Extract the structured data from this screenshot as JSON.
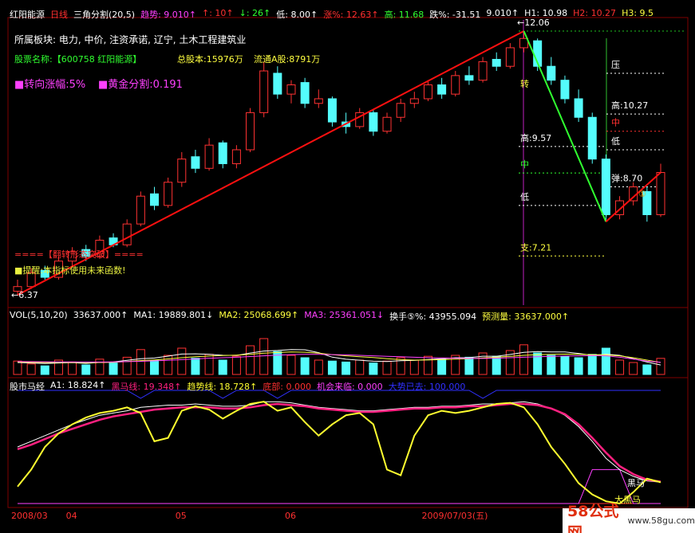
{
  "header": [
    {
      "text": "红阳能源",
      "color": "#ffffff"
    },
    {
      "text": "日线",
      "color": "#ff3030"
    },
    {
      "text": "三角分割(20,5)",
      "color": "#ffffff"
    },
    {
      "text": "趋势: 9.010↑",
      "color": "#ff40ff"
    },
    {
      "text": "↑: 10↑",
      "color": "#ff3030"
    },
    {
      "text": "↓: 26↑",
      "color": "#30ff30"
    },
    {
      "text": "低: 8.00↑",
      "color": "#ffffff"
    },
    {
      "text": "涨%: 12.63↑",
      "color": "#ff3030"
    },
    {
      "text": "高: 11.68",
      "color": "#30ff30"
    },
    {
      "text": "跌%: -31.51",
      "color": "#ffffff"
    },
    {
      "text": "9.010↑",
      "color": "#ffffff"
    },
    {
      "text": "H1: 10.98",
      "color": "#ffffff"
    },
    {
      "text": "H2: 10.27",
      "color": "#ff3030"
    },
    {
      "text": "H3: 9.5",
      "color": "#ffff40"
    }
  ],
  "info": {
    "sector": "所属板块: 电力, 中价, 注资承诺, 辽宁, 土木工程建筑业",
    "name": "股票名称:【600758 红阳能源】",
    "total_shares": "总股本:15976万",
    "float_shares": "流通A股:8791万",
    "turn_rise": "■转向涨幅:5%",
    "golden": "■黄金分割:0.191",
    "signal": "====【翻转形态突破】====",
    "warning": "■提醒:本指标使用未来函数!"
  },
  "chart_data": [
    {
      "type": "candlestick",
      "up_color": "#ff3232",
      "down_color": "#54fcfc",
      "ylim": [
        6.15,
        12.3
      ],
      "trend_color": "#ff1010",
      "fall_color": "#30ff30",
      "ohlc": [
        [
          6.45,
          6.7,
          6.37,
          6.55
        ],
        [
          6.55,
          6.95,
          6.5,
          6.85
        ],
        [
          6.9,
          7.0,
          6.7,
          6.75
        ],
        [
          6.75,
          7.2,
          6.7,
          7.1
        ],
        [
          7.1,
          7.4,
          7.0,
          7.3
        ],
        [
          7.35,
          7.45,
          7.1,
          7.2
        ],
        [
          7.2,
          7.65,
          7.15,
          7.55
        ],
        [
          7.6,
          7.7,
          7.4,
          7.45
        ],
        [
          7.45,
          8.0,
          7.4,
          7.9
        ],
        [
          7.9,
          8.6,
          7.85,
          8.5
        ],
        [
          8.55,
          8.7,
          8.2,
          8.3
        ],
        [
          8.3,
          8.9,
          8.25,
          8.8
        ],
        [
          8.8,
          9.45,
          8.7,
          9.3
        ],
        [
          9.35,
          9.5,
          9.0,
          9.1
        ],
        [
          9.1,
          9.75,
          9.05,
          9.6
        ],
        [
          9.65,
          9.7,
          9.1,
          9.2
        ],
        [
          9.2,
          9.6,
          9.1,
          9.5
        ],
        [
          9.5,
          10.4,
          9.45,
          10.3
        ],
        [
          10.3,
          11.4,
          10.2,
          11.2
        ],
        [
          11.15,
          11.3,
          10.6,
          10.7
        ],
        [
          10.7,
          11.0,
          10.5,
          10.9
        ],
        [
          10.95,
          11.05,
          10.4,
          10.5
        ],
        [
          10.5,
          10.8,
          10.4,
          10.6
        ],
        [
          10.6,
          10.65,
          10.0,
          10.1
        ],
        [
          10.1,
          10.3,
          9.85,
          10.0
        ],
        [
          10.0,
          10.4,
          9.95,
          10.3
        ],
        [
          10.3,
          10.35,
          9.8,
          9.9
        ],
        [
          9.9,
          10.3,
          9.85,
          10.2
        ],
        [
          10.2,
          10.6,
          10.1,
          10.5
        ],
        [
          10.5,
          10.75,
          10.4,
          10.6
        ],
        [
          10.6,
          11.0,
          10.55,
          10.9
        ],
        [
          10.9,
          11.05,
          10.6,
          10.7
        ],
        [
          10.7,
          11.2,
          10.65,
          11.1
        ],
        [
          11.1,
          11.3,
          10.9,
          11.0
        ],
        [
          11.0,
          11.5,
          10.95,
          11.4
        ],
        [
          11.45,
          11.6,
          11.2,
          11.3
        ],
        [
          11.3,
          11.8,
          11.25,
          11.7
        ],
        [
          11.7,
          12.06,
          11.6,
          11.9
        ],
        [
          11.85,
          11.9,
          11.2,
          11.3
        ],
        [
          11.3,
          11.5,
          10.9,
          11.0
        ],
        [
          11.0,
          11.1,
          10.5,
          10.6
        ],
        [
          10.6,
          10.8,
          10.1,
          10.2
        ],
        [
          10.2,
          10.3,
          9.2,
          9.3
        ],
        [
          9.3,
          9.4,
          7.95,
          8.1
        ],
        [
          8.1,
          8.5,
          8.0,
          8.4
        ],
        [
          8.4,
          8.8,
          8.3,
          8.7
        ],
        [
          8.6,
          8.7,
          7.95,
          8.1
        ],
        [
          8.1,
          9.2,
          8.05,
          9.01
        ]
      ],
      "dates": [
        "2008/03",
        null,
        null,
        null,
        "04",
        null,
        null,
        null,
        null,
        null,
        null,
        null,
        "05",
        null,
        null,
        null,
        null,
        null,
        null,
        null,
        "06",
        null,
        null,
        null,
        null,
        null,
        null,
        null,
        null,
        null,
        "2009/07/03(五)",
        null,
        null,
        null,
        null,
        null,
        null,
        null,
        null,
        null,
        null,
        null,
        null,
        null,
        null,
        null,
        null,
        null
      ],
      "annotations": [
        {
          "text": "←6.37",
          "color": "#ffffff"
        },
        {
          "text": "转",
          "color": "#ffff40"
        },
        {
          "text": "①",
          "color": "#ffa000"
        }
      ],
      "levels": [
        {
          "text": "←12.06",
          "value": 12.06,
          "color": "#ffffff",
          "line_color": "#20c020"
        },
        {
          "text": "压",
          "value": 11.15,
          "color": "#ffffff"
        },
        {
          "text": "高:10.27",
          "value": 10.27,
          "color": "#ffffff"
        },
        {
          "text": "中",
          "value": 9.9,
          "color": "#ff3030"
        },
        {
          "text": "低",
          "value": 9.5,
          "color": "#ffffff"
        },
        {
          "text": "弹:8.70",
          "value": 8.7,
          "color": "#ffffff"
        },
        {
          "text": "高:9.57",
          "value": 9.57,
          "color": "#ffffff"
        },
        {
          "text": "中",
          "value": 9.0,
          "color": "#30ff30"
        },
        {
          "text": "低",
          "value": 8.3,
          "color": "#ffffff"
        },
        {
          "text": "支:7.21",
          "value": 7.21,
          "color": "#ffff40"
        }
      ]
    },
    {
      "type": "bar",
      "title": "VOL(5,10,20)",
      "value_label": "33637.000↑",
      "ylim": [
        0,
        120000
      ],
      "values": [
        28000,
        22000,
        18000,
        30000,
        26000,
        20000,
        32000,
        24000,
        36000,
        52000,
        30000,
        40000,
        55000,
        34000,
        42000,
        30000,
        38000,
        60000,
        75000,
        48000,
        40000,
        35000,
        30000,
        28000,
        26000,
        30000,
        24000,
        28000,
        35000,
        30000,
        38000,
        32000,
        40000,
        36000,
        45000,
        38000,
        50000,
        62000,
        45000,
        40000,
        38000,
        35000,
        42000,
        55000,
        30000,
        25000,
        20000,
        33637
      ],
      "series": [
        {
          "name": "MA1: 19889.801↓",
          "color": "#ffffff",
          "values": [
            25000,
            24000,
            23000,
            24000,
            24800,
            23200,
            25200,
            26400,
            29600,
            32800,
            34400,
            38400,
            42600,
            43200,
            42200,
            40200,
            39800,
            44800,
            49000,
            50200,
            52200,
            51600,
            45600,
            36200,
            31800,
            29800,
            27600,
            27200,
            28600,
            29400,
            31000,
            33000,
            35000,
            35200,
            38200,
            38200,
            41800,
            46200,
            48000,
            47000,
            47000,
            44000,
            40000,
            42400,
            40000,
            33000,
            26000,
            19889.801
          ]
        },
        {
          "name": "MA2: 25068.699↑",
          "color": "#ffff40",
          "values": [
            26000,
            25500,
            25000,
            25000,
            25200,
            24800,
            25000,
            25500,
            27000,
            29000,
            30500,
            32500,
            35000,
            37000,
            38500,
            39500,
            40500,
            42000,
            44500,
            46000,
            47000,
            46500,
            44500,
            41500,
            39000,
            37000,
            35500,
            33000,
            31000,
            30000,
            30500,
            31000,
            32000,
            33000,
            34500,
            36000,
            38000,
            40000,
            41500,
            42000,
            42500,
            42000,
            41500,
            41000,
            39000,
            35000,
            30000,
            25068.699
          ]
        },
        {
          "name": "MA3: 25361.051↓",
          "color": "#ff40ff",
          "values": [
            27000,
            26800,
            26500,
            26300,
            26200,
            26000,
            26000,
            26200,
            26800,
            27500,
            28500,
            29500,
            31000,
            32500,
            34000,
            35000,
            36000,
            37500,
            39000,
            40500,
            41500,
            42000,
            42000,
            41500,
            41000,
            40000,
            39000,
            38000,
            37000,
            36000,
            35000,
            34500,
            34000,
            33500,
            33500,
            34000,
            35000,
            36000,
            37000,
            38000,
            38500,
            39000,
            39500,
            39000,
            36000,
            32000,
            28000,
            25361.051
          ]
        }
      ],
      "extras": [
        {
          "text": "换手⑤%: 43955.094",
          "color": "#ffffff"
        },
        {
          "text": "预测量: 33637.000↑",
          "color": "#ffff40"
        }
      ]
    },
    {
      "type": "line",
      "title": "股市马经",
      "ylim": [
        0,
        100
      ],
      "series": [
        {
          "name": "大势已去: 100.000",
          "color": "#3030ff",
          "width": 1,
          "values": [
            100,
            100,
            100,
            100,
            100,
            100,
            100,
            100,
            100,
            93,
            100,
            100,
            100,
            100,
            100,
            93,
            100,
            100,
            100,
            93,
            100,
            100,
            100,
            100,
            100,
            100,
            100,
            100,
            100,
            100,
            100,
            100,
            100,
            100,
            93,
            100,
            100,
            100,
            100,
            100,
            100,
            100,
            100,
            100,
            100,
            100,
            100,
            100
          ]
        },
        {
          "name": "底部: 0.000",
          "color": "#ff3030",
          "width": 1,
          "values": [
            0,
            0,
            0,
            0,
            0,
            0,
            0,
            0,
            0,
            0,
            0,
            0,
            0,
            0,
            0,
            0,
            0,
            0,
            0,
            0,
            0,
            0,
            0,
            0,
            0,
            0,
            0,
            0,
            0,
            0,
            0,
            0,
            0,
            0,
            0,
            0,
            0,
            0,
            0,
            0,
            0,
            0,
            0,
            0,
            0,
            0,
            0,
            0
          ]
        },
        {
          "name": "机会来临: 0.000",
          "color": "#ff40ff",
          "width": 1,
          "values": [
            0,
            0,
            0,
            0,
            0,
            0,
            0,
            0,
            0,
            0,
            0,
            0,
            0,
            0,
            0,
            0,
            0,
            0,
            0,
            0,
            0,
            0,
            0,
            0,
            0,
            0,
            0,
            0,
            0,
            0,
            0,
            0,
            0,
            0,
            0,
            0,
            0,
            0,
            0,
            0,
            0,
            0,
            30,
            30,
            30,
            0,
            0,
            0
          ]
        },
        {
          "name": "A1: 18.824↑",
          "color": "#ffffff",
          "width": 1,
          "values": [
            50,
            55,
            60,
            65,
            70,
            74,
            78,
            80,
            82,
            85,
            86,
            87,
            87,
            88,
            87,
            86,
            86,
            87,
            90,
            90,
            89,
            87,
            85,
            84,
            83,
            82,
            82,
            83,
            84,
            85,
            85,
            86,
            86,
            87,
            88,
            88,
            89,
            90,
            88,
            84,
            78,
            68,
            55,
            40,
            30,
            24,
            20,
            18.824
          ]
        },
        {
          "name": "黑马线: 19.348↑",
          "color": "#ff2080",
          "width": 2.5,
          "values": [
            48,
            52,
            57,
            62,
            66,
            70,
            74,
            77,
            79,
            81,
            83,
            84,
            85,
            85,
            85,
            84,
            84,
            85,
            87,
            88,
            87,
            86,
            84,
            83,
            82,
            81,
            81,
            82,
            83,
            84,
            84,
            85,
            85,
            86,
            86,
            87,
            88,
            88,
            87,
            84,
            79,
            70,
            58,
            45,
            33,
            26,
            21,
            19.348
          ]
        },
        {
          "name": "趋势线: 18.728↑",
          "color": "#ffff30",
          "width": 2,
          "values": [
            15,
            30,
            50,
            62,
            70,
            76,
            80,
            82,
            85,
            80,
            55,
            58,
            82,
            86,
            83,
            75,
            82,
            88,
            90,
            82,
            85,
            72,
            60,
            70,
            78,
            80,
            70,
            30,
            25,
            60,
            78,
            82,
            80,
            82,
            85,
            88,
            89,
            85,
            70,
            50,
            35,
            18,
            8,
            2,
            0,
            10,
            22,
            18.728
          ]
        }
      ],
      "annotations": [
        {
          "text": "黑马",
          "color": "#ffffff"
        },
        {
          "text": "大黑马",
          "color": "#ffff40"
        }
      ]
    }
  ],
  "watermark": {
    "brand": "58公式网",
    "url": "www.58gu.com"
  }
}
